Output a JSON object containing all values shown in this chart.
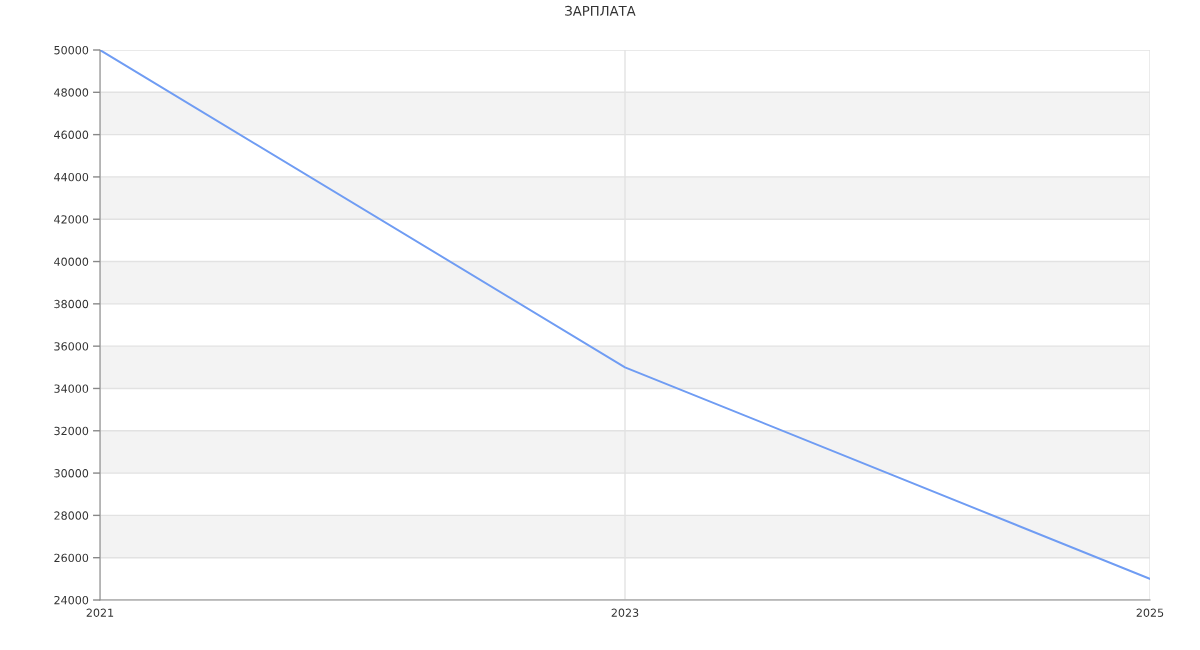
{
  "chart_data": {
    "type": "line",
    "title": "ЗАРПЛАТА",
    "x": [
      2021,
      2023,
      2025
    ],
    "series": [
      {
        "color": "#6f9cf3",
        "values": [
          50000,
          35000,
          25000
        ]
      }
    ],
    "xlim": [
      2021,
      2025
    ],
    "xticks": [
      2021,
      2023,
      2025
    ],
    "ylim": [
      24000,
      50000
    ],
    "yticks": [
      24000,
      26000,
      28000,
      30000,
      32000,
      34000,
      36000,
      38000,
      40000,
      42000,
      44000,
      46000,
      48000,
      50000
    ],
    "bands": [
      {
        "axis": "y",
        "from": 26000,
        "to": 28000,
        "color": "#f3f3f3"
      },
      {
        "axis": "y",
        "from": 30000,
        "to": 32000,
        "color": "#f3f3f3"
      },
      {
        "axis": "y",
        "from": 34000,
        "to": 36000,
        "color": "#f3f3f3"
      },
      {
        "axis": "y",
        "from": 38000,
        "to": 40000,
        "color": "#f3f3f3"
      },
      {
        "axis": "y",
        "from": 42000,
        "to": 44000,
        "color": "#f3f3f3"
      },
      {
        "axis": "y",
        "from": 46000,
        "to": 48000,
        "color": "#f3f3f3"
      }
    ],
    "grid": true,
    "marker": "none",
    "line_style": "solid"
  }
}
